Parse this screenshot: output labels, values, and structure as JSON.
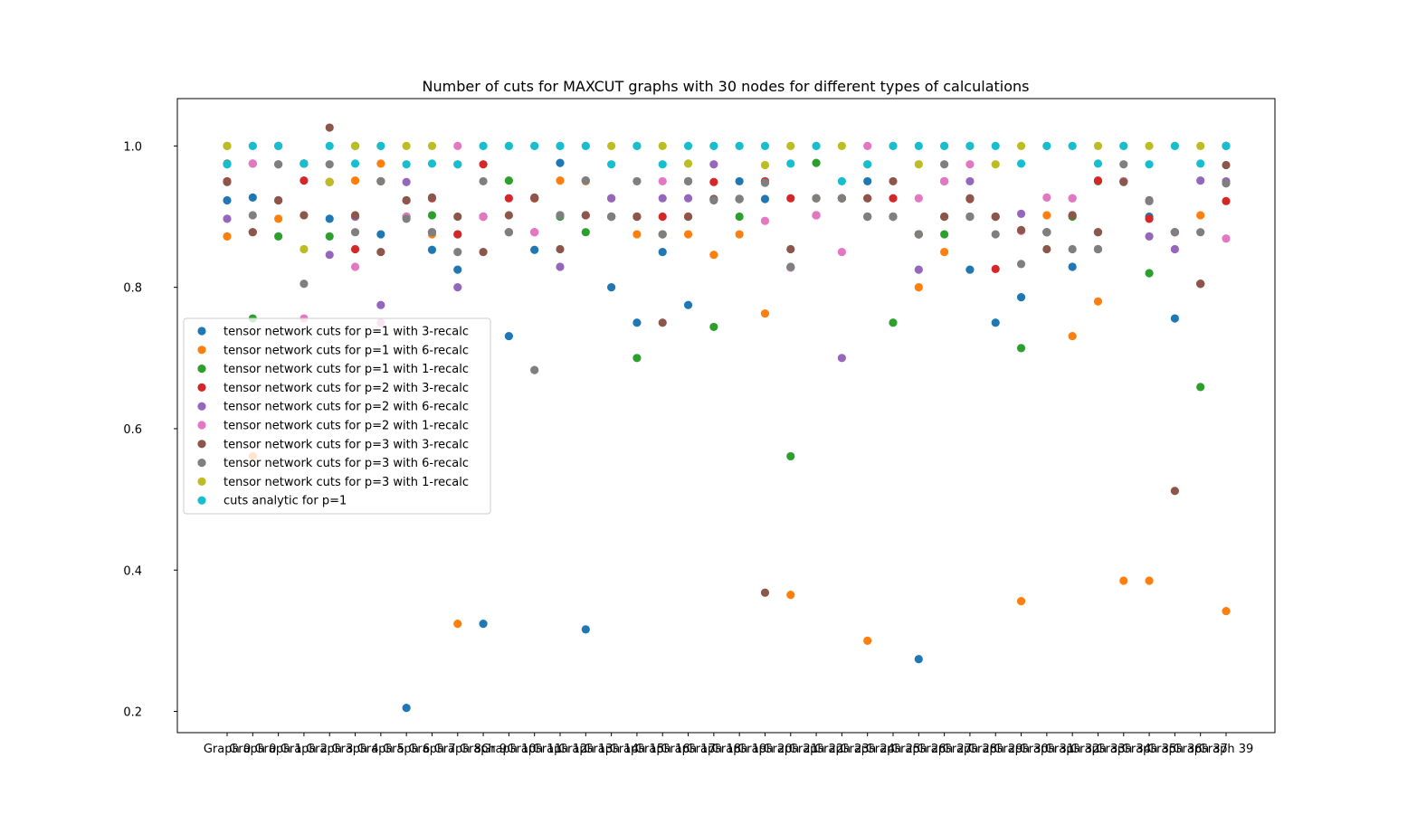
{
  "chart_data": {
    "type": "scatter",
    "title": "Number of cuts for MAXCUT graphs with 30 nodes for different types of calculations",
    "xlabel": "",
    "ylabel": "",
    "ylim": [
      0.17,
      1.067
    ],
    "yticks": [
      0.2,
      0.4,
      0.6,
      0.8,
      1.0
    ],
    "ytick_labels": [
      "0.2",
      "0.4",
      "0.6",
      "0.8",
      "1.0"
    ],
    "legend_position": "center-left",
    "categories": [
      "Graph 0",
      "Graph 0",
      "Graph 1",
      "Graph 2",
      "Graph 3",
      "Graph 4",
      "Graph 5",
      "Graph 6",
      "Graph 7",
      "Graph 8",
      "Graph 9",
      "Graph 10",
      "Graph 11",
      "Graph 12",
      "Graph 13",
      "Graph 14",
      "Graph 15",
      "Graph 16",
      "Graph 17",
      "Graph 18",
      "Graph 19",
      "Graph 20",
      "Graph 21",
      "Graph 22",
      "Graph 23",
      "Graph 24",
      "Graph 25",
      "Graph 26",
      "Graph 27",
      "Graph 28",
      "Graph 29",
      "Graph 30",
      "Graph 31",
      "Graph 32",
      "Graph 33",
      "Graph 34",
      "Graph 35",
      "Graph 36",
      "Graph 37",
      "Graph 39"
    ],
    "xtick_labels": [
      "Graph 0",
      "Graph 0",
      "Graph 1",
      "Graph 2",
      "Graph 3",
      "Graph 4",
      "Graph 5",
      "Graph 6",
      "Graph 7",
      "Graph 8",
      "Graph 9",
      "Graph 10",
      "Graph 11",
      "Graph 12",
      "Graph 13",
      "Graph 14",
      "Graph 15",
      "Graph 16",
      "Graph 17",
      "Graph 18",
      "Graph 19",
      "Graph 20",
      "Graph 21",
      "Graph 22",
      "Graph 23",
      "Graph 24",
      "Graph 25",
      "Graph 26",
      "Graph 27",
      "Graph 28",
      "Graph 29",
      "Graph 30",
      "Graph 31",
      "Graph 32",
      "Graph 33",
      "Graph 34",
      "Graph 35",
      "Graph 36",
      "Graph 37",
      "Graph 39"
    ],
    "series": [
      {
        "name": "tensor network cuts for p=1 with 3-recalc",
        "color": "#1f77b4",
        "values": [
          0.923,
          0.927,
          1.0,
          0.975,
          0.897,
          1.0,
          0.875,
          0.205,
          0.853,
          0.825,
          0.324,
          0.731,
          0.853,
          0.976,
          0.316,
          0.8,
          0.75,
          0.85,
          0.775,
          0.925,
          0.95,
          0.925,
          0.828,
          0.926,
          0.926,
          0.95,
          0.9,
          0.274,
          0.95,
          0.825,
          0.75,
          0.786,
          0.878,
          0.829,
          0.854,
          0.95,
          0.9,
          0.756,
          0.805,
          1.0
        ]
      },
      {
        "name": "tensor network cuts for p=1 with 6-recalc",
        "color": "#ff7f0e",
        "values": [
          0.872,
          0.561,
          0.897,
          0.975,
          0.949,
          0.951,
          0.975,
          0.9,
          0.875,
          0.324,
          0.9,
          0.878,
          0.878,
          0.951,
          0.95,
          0.9,
          0.875,
          0.875,
          0.875,
          0.846,
          0.875,
          0.763,
          0.365,
          0.926,
          0.926,
          0.3,
          0.9,
          0.8,
          0.85,
          0.9,
          0.9,
          0.356,
          0.902,
          0.731,
          0.78,
          0.385,
          0.385,
          0.878,
          0.902,
          0.342
        ]
      },
      {
        "name": "tensor network cuts for p=1 with 1-recalc",
        "color": "#2ca02c",
        "values": [
          0.975,
          0.756,
          0.872,
          0.975,
          0.872,
          0.9,
          0.95,
          0.9,
          0.902,
          0.875,
          0.9,
          0.951,
          0.926,
          0.9,
          0.878,
          0.9,
          0.7,
          0.875,
          0.95,
          0.744,
          0.9,
          0.95,
          0.561,
          0.976,
          0.926,
          0.9,
          0.75,
          0.875,
          0.875,
          0.9,
          0.9,
          0.714,
          0.878,
          0.9,
          0.95,
          0.95,
          0.82,
          0.878,
          0.659,
          1.0
        ]
      },
      {
        "name": "tensor network cuts for p=2 with 3-recalc",
        "color": "#d62728",
        "values": [
          0.95,
          0.975,
          0.923,
          0.951,
          0.949,
          0.854,
          0.95,
          0.923,
          0.926,
          0.875,
          0.974,
          0.926,
          0.926,
          0.902,
          0.951,
          0.926,
          0.9,
          0.9,
          0.9,
          0.949,
          0.925,
          0.95,
          0.926,
          0.902,
          0.926,
          0.926,
          0.926,
          0.875,
          0.9,
          0.925,
          0.826,
          0.88,
          0.878,
          0.902,
          0.951,
          0.95,
          0.897,
          0.878,
          0.805,
          0.922
        ]
      },
      {
        "name": "tensor network cuts for p=2 with 6-recalc",
        "color": "#9467bd",
        "values": [
          0.897,
          0.878,
          0.974,
          0.975,
          0.846,
          0.9,
          0.775,
          0.949,
          0.878,
          0.8,
          0.9,
          0.878,
          0.878,
          0.829,
          0.902,
          0.926,
          0.9,
          0.926,
          0.926,
          0.974,
          0.925,
          0.948,
          0.828,
          0.902,
          0.7,
          0.9,
          0.9,
          0.825,
          0.95,
          0.95,
          0.9,
          0.904,
          0.878,
          0.926,
          0.878,
          0.95,
          0.872,
          0.854,
          0.951,
          0.95
        ]
      },
      {
        "name": "tensor network cuts for p=2 with 1-recalc",
        "color": "#e377c2",
        "values": [
          0.974,
          0.975,
          1.0,
          0.756,
          0.949,
          0.829,
          0.75,
          0.9,
          0.878,
          1.0,
          0.9,
          0.878,
          0.878,
          0.902,
          0.902,
          0.9,
          0.95,
          0.95,
          0.95,
          0.925,
          0.925,
          0.894,
          0.828,
          0.902,
          0.85,
          1.0,
          0.9,
          0.926,
          0.95,
          0.974,
          0.9,
          0.88,
          0.927,
          0.926,
          0.878,
          0.95,
          0.922,
          0.878,
          0.805,
          0.869
        ]
      },
      {
        "name": "tensor network cuts for p=3 with 3-recalc",
        "color": "#8c564b",
        "values": [
          0.949,
          0.878,
          0.923,
          0.902,
          1.026,
          0.902,
          0.85,
          0.923,
          0.927,
          0.9,
          0.85,
          0.902,
          0.927,
          0.854,
          0.902,
          0.9,
          0.9,
          0.75,
          0.9,
          0.925,
          0.925,
          0.368,
          0.854,
          0.926,
          0.926,
          0.926,
          0.95,
          0.875,
          0.9,
          0.926,
          0.9,
          0.881,
          0.854,
          0.902,
          0.878,
          0.949,
          0.923,
          0.512,
          0.805,
          0.973
        ]
      },
      {
        "name": "tensor network cuts for p=3 with 6-recalc",
        "color": "#7f7f7f",
        "values": [
          1.0,
          0.902,
          0.974,
          0.805,
          0.974,
          0.878,
          0.95,
          0.897,
          0.878,
          0.85,
          0.95,
          0.878,
          0.683,
          0.902,
          0.951,
          0.9,
          0.95,
          0.875,
          0.95,
          0.923,
          0.925,
          0.948,
          0.829,
          0.926,
          0.926,
          0.9,
          0.9,
          0.875,
          0.974,
          0.9,
          0.875,
          0.833,
          0.878,
          0.854,
          0.854,
          0.974,
          0.922,
          0.878,
          0.878,
          0.947
        ]
      },
      {
        "name": "tensor network cuts for p=3 with 1-recalc",
        "color": "#bcbd22",
        "values": [
          1.0,
          1.0,
          1.0,
          0.854,
          0.949,
          1.0,
          1.0,
          1.0,
          1.0,
          0.974,
          1.0,
          1.0,
          1.0,
          1.0,
          1.0,
          1.0,
          1.0,
          1.0,
          0.975,
          1.0,
          1.0,
          0.973,
          1.0,
          1.0,
          1.0,
          0.974,
          1.0,
          0.974,
          1.0,
          1.0,
          0.974,
          1.0,
          1.0,
          1.0,
          1.0,
          1.0,
          1.0,
          1.0,
          1.0,
          1.0
        ]
      },
      {
        "name": "cuts analytic for p=1",
        "color": "#17becf",
        "values": [
          0.974,
          1.0,
          1.0,
          0.975,
          1.0,
          0.975,
          1.0,
          0.974,
          0.975,
          0.974,
          1.0,
          1.0,
          1.0,
          1.0,
          1.0,
          0.974,
          1.0,
          0.974,
          1.0,
          1.0,
          1.0,
          1.0,
          0.975,
          1.0,
          0.95,
          0.974,
          1.0,
          1.0,
          1.0,
          1.0,
          1.0,
          0.975,
          1.0,
          1.0,
          0.975,
          1.0,
          0.974,
          1.0,
          0.975,
          1.0
        ]
      }
    ]
  }
}
